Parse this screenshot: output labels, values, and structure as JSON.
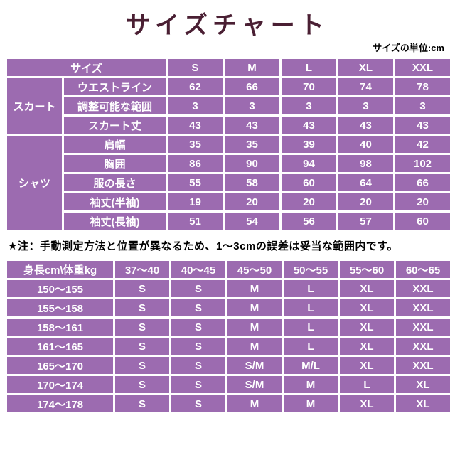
{
  "header": {
    "title": "サイズチャート",
    "unit_note": "サイズの単位:cm"
  },
  "colors": {
    "cell_purple": "#9c6bb0",
    "title_color": "#4a1f33",
    "border_white": "#ffffff"
  },
  "size_table": {
    "corner_label": "サイズ",
    "size_headers": [
      "S",
      "M",
      "L",
      "XL",
      "XXL"
    ],
    "groups": [
      {
        "name": "スカート",
        "rows": [
          {
            "label": "ウエストライン",
            "values": [
              "62",
              "66",
              "70",
              "74",
              "78"
            ]
          },
          {
            "label": "調整可能な範囲",
            "values": [
              "3",
              "3",
              "3",
              "3",
              "3"
            ]
          },
          {
            "label": "スカート丈",
            "values": [
              "43",
              "43",
              "43",
              "43",
              "43"
            ]
          }
        ]
      },
      {
        "name": "シャツ",
        "rows": [
          {
            "label": "肩幅",
            "values": [
              "35",
              "35",
              "39",
              "40",
              "42"
            ]
          },
          {
            "label": "胸囲",
            "values": [
              "86",
              "90",
              "94",
              "98",
              "102"
            ]
          },
          {
            "label": "服の長さ",
            "values": [
              "55",
              "58",
              "60",
              "64",
              "66"
            ]
          },
          {
            "label": "袖丈(半袖)",
            "values": [
              "19",
              "20",
              "20",
              "20",
              "20"
            ]
          },
          {
            "label": "袖丈(長袖)",
            "values": [
              "51",
              "54",
              "56",
              "57",
              "60"
            ]
          }
        ]
      }
    ]
  },
  "note": "手動測定方法と位置が異なるため、1〜3cmの誤差は妥当な範囲内です。",
  "note_prefix": "★注：",
  "fit_table": {
    "corner_label": "身長cm\\体重kg",
    "weight_headers": [
      "37〜40",
      "40〜45",
      "45〜50",
      "50〜55",
      "55〜60",
      "60〜65"
    ],
    "rows": [
      {
        "height": "150〜155",
        "sizes": [
          "S",
          "S",
          "M",
          "L",
          "XL",
          "XXL"
        ]
      },
      {
        "height": "155〜158",
        "sizes": [
          "S",
          "S",
          "M",
          "L",
          "XL",
          "XXL"
        ]
      },
      {
        "height": "158〜161",
        "sizes": [
          "S",
          "S",
          "M",
          "L",
          "XL",
          "XXL"
        ]
      },
      {
        "height": "161〜165",
        "sizes": [
          "S",
          "S",
          "M",
          "L",
          "XL",
          "XXL"
        ]
      },
      {
        "height": "165〜170",
        "sizes": [
          "S",
          "S",
          "S/M",
          "M/L",
          "XL",
          "XXL"
        ]
      },
      {
        "height": "170〜174",
        "sizes": [
          "S",
          "S",
          "S/M",
          "M",
          "L",
          "XL"
        ]
      },
      {
        "height": "174〜178",
        "sizes": [
          "S",
          "S",
          "M",
          "M",
          "XL",
          "XL"
        ]
      }
    ]
  }
}
